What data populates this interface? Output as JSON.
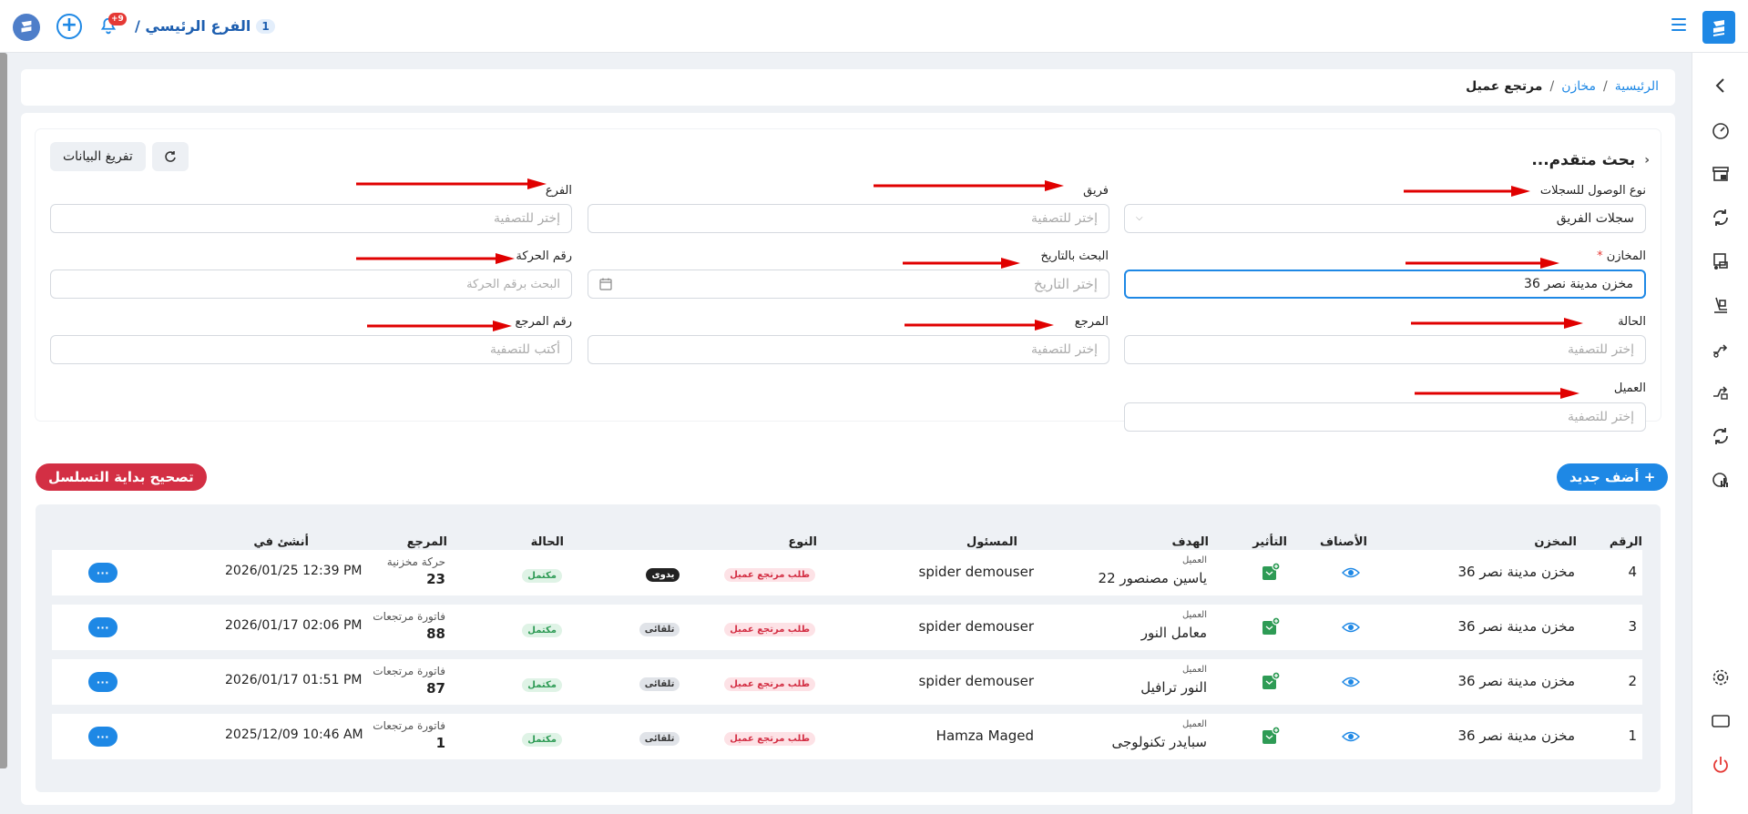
{
  "header": {
    "branch_name": "الفرع الرئيسي /",
    "branch_number": "1",
    "notifications_count": "+9"
  },
  "breadcrumb": {
    "home": "الرئيسية",
    "stores": "مخازن",
    "current": "مرتجع عميل",
    "separator": "/"
  },
  "filters": {
    "title": "بحث متقدم...",
    "unload_button": "تفريغ البيانات",
    "access_type": {
      "label": "نوع الوصول للسجلات",
      "value": "سجلات الفريق"
    },
    "team": {
      "label": "فريق",
      "placeholder": "إختر للتصفية"
    },
    "branch": {
      "label": "الفرع",
      "placeholder": "إختر للتصفية"
    },
    "stores": {
      "label": "المخازن",
      "required": "*",
      "value": "مخزن مدينة نصر 36"
    },
    "date_search": {
      "label": "البحث بالتاريخ",
      "placeholder": "إختر التاريخ"
    },
    "movement_no": {
      "label": "رقم الحركة",
      "placeholder": "البحث برقم الحركة"
    },
    "status": {
      "label": "الحالة",
      "placeholder": "إختر للتصفية"
    },
    "reference": {
      "label": "المرجع",
      "placeholder": "إختر للتصفية"
    },
    "reference_no": {
      "label": "رقم المرجع",
      "placeholder": "أكتب للتصفية"
    },
    "customer": {
      "label": "العميل",
      "placeholder": "إختر للتصفية"
    }
  },
  "actions": {
    "add_new": "+ أضف جديد",
    "fix_sequence": "تصحيح بداية التسلسل"
  },
  "table": {
    "headers": {
      "number": "الرقم",
      "store": "المخزن",
      "items": "الأصناف",
      "impact": "التأثير",
      "target": "الهدف",
      "responsible": "المسئول",
      "type": "النوع",
      "status": "الحالة",
      "reference": "المرجع",
      "created_at": "أنشئ في"
    },
    "rows": [
      {
        "number": "4",
        "store": "مخزن مدينة نصر 36",
        "target_label": "العميل",
        "target": "ياسين مصنصور 22",
        "responsible": "spider demouser",
        "type": "طلب مرتجع عميل",
        "mode": "يدوى",
        "status": "مكتمل",
        "ref_label": "حركة مخزنية",
        "ref_no": "23",
        "created": "2026/01/25 12:39 PM",
        "more": "···"
      },
      {
        "number": "3",
        "store": "مخزن مدينة نصر 36",
        "target_label": "العميل",
        "target": "معامل النور",
        "responsible": "spider demouser",
        "type": "طلب مرتجع عميل",
        "mode": "تلقائى",
        "status": "مكتمل",
        "ref_label": "فاتورة مرتجعات",
        "ref_no": "88",
        "created": "2026/01/17 02:06 PM",
        "more": "···"
      },
      {
        "number": "2",
        "store": "مخزن مدينة نصر 36",
        "target_label": "العميل",
        "target": "النور ترافيل",
        "responsible": "spider demouser",
        "type": "طلب مرتجع عميل",
        "mode": "تلقائى",
        "status": "مكتمل",
        "ref_label": "فاتورة مرتجعات",
        "ref_no": "87",
        "created": "2026/01/17 01:51 PM",
        "more": "···"
      },
      {
        "number": "1",
        "store": "مخزن مدينة نصر 36",
        "target_label": "العميل",
        "target": "سبايدر تكنولوجى",
        "responsible": "Hamza Maged",
        "type": "طلب مرتجع عميل",
        "mode": "تلقائى",
        "status": "مكتمل",
        "ref_label": "فاتورة مرتجعات",
        "ref_no": "1",
        "created": "2025/12/09 10:46 AM",
        "more": "···"
      }
    ]
  },
  "colors": {
    "primary": "#1e88e5",
    "danger": "#d32f44",
    "success": "#2e9b55",
    "annotation_arrow": "#e00000"
  },
  "icons": {
    "sidebar": [
      "chevron-left-icon",
      "speedometer-icon",
      "store-icon",
      "sync-icon",
      "truck-icon",
      "warehouse-icon",
      "transfer-icon",
      "transfer-out-icon",
      "sync-icon",
      "report-icon",
      "gear-icon",
      "monitor-icon",
      "power-icon"
    ]
  }
}
